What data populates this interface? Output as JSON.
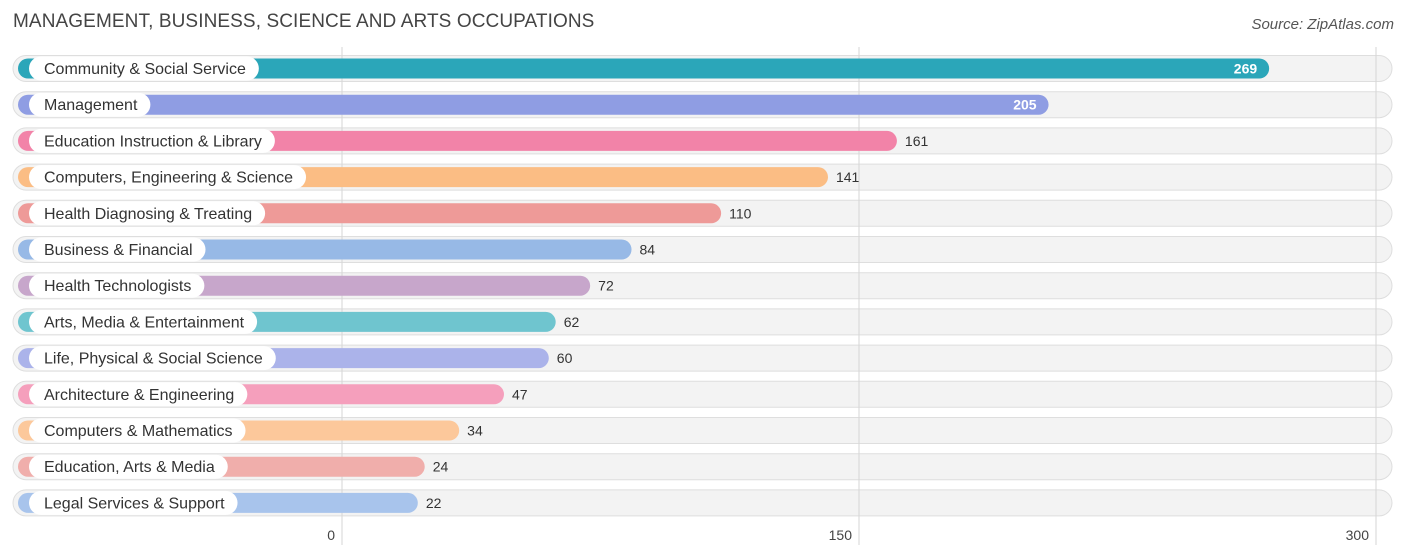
{
  "title": "MANAGEMENT, BUSINESS, SCIENCE AND ARTS OCCUPATIONS",
  "source": "Source: ZipAtlas.com",
  "chart_data": {
    "type": "bar",
    "orientation": "horizontal",
    "categories": [
      "Community & Social Service",
      "Management",
      "Education Instruction & Library",
      "Computers, Engineering & Science",
      "Health Diagnosing & Treating",
      "Business & Financial",
      "Health Technologists",
      "Arts, Media & Entertainment",
      "Life, Physical & Social Science",
      "Architecture & Engineering",
      "Computers & Mathematics",
      "Education, Arts & Media",
      "Legal Services & Support"
    ],
    "values": [
      269,
      205,
      161,
      141,
      110,
      84,
      72,
      62,
      60,
      47,
      34,
      24,
      22
    ],
    "colors": [
      "#2ba6b9",
      "#8f9de3",
      "#f283a8",
      "#fbbd84",
      "#ee9a98",
      "#97b9e6",
      "#c7a6cb",
      "#6fc5cf",
      "#abb3ea",
      "#f59fbc",
      "#fcc89b",
      "#f0aeab",
      "#a8c4ec"
    ],
    "xlim": [
      0,
      300
    ],
    "xticks": [
      0,
      150,
      300
    ],
    "grid": true
  }
}
